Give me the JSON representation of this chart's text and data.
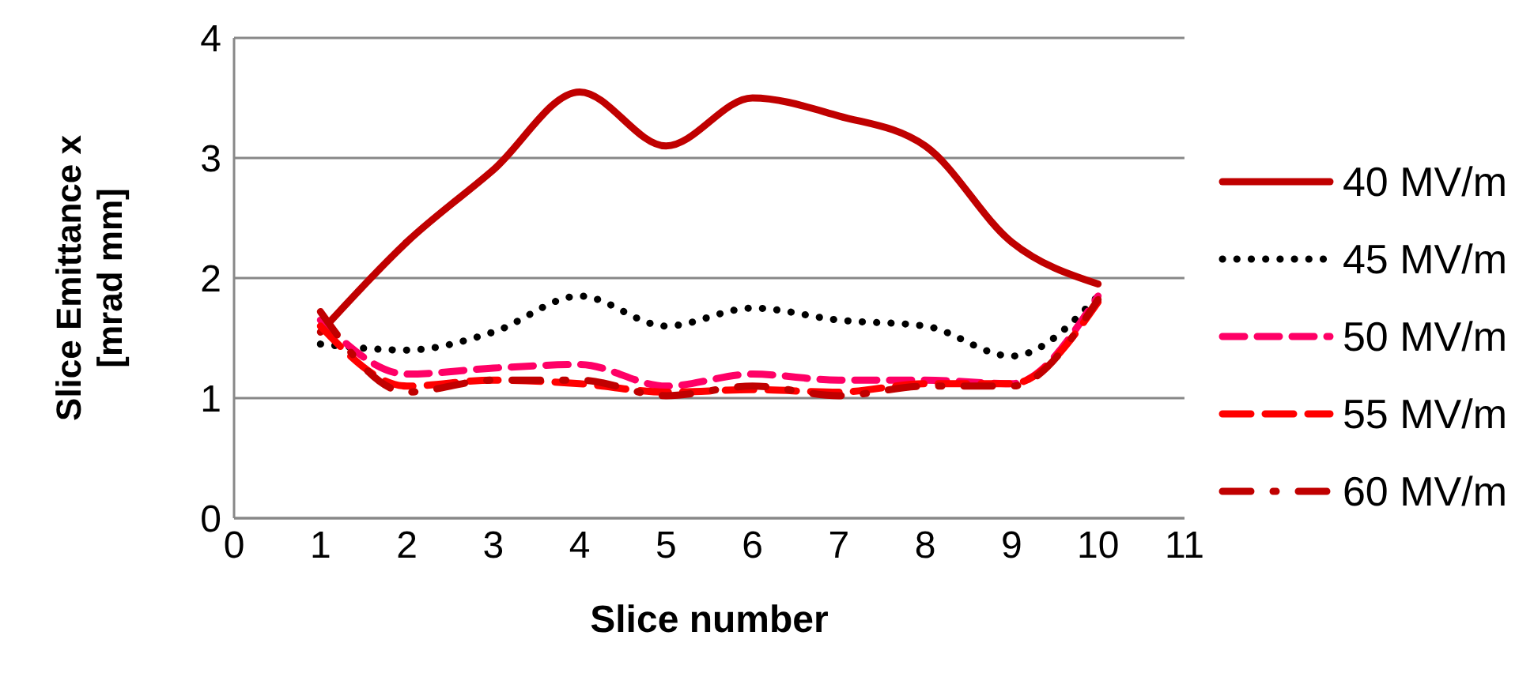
{
  "chart_data": {
    "type": "line",
    "xlabel": "Slice number",
    "ylabel": "Slice Emittance x [mrad mm]",
    "x": [
      1,
      2,
      3,
      4,
      5,
      6,
      7,
      8,
      9,
      10
    ],
    "xlim": [
      0,
      11
    ],
    "xticks": [
      0,
      1,
      2,
      3,
      4,
      5,
      6,
      7,
      8,
      9,
      10,
      11
    ],
    "ylim": [
      0,
      4
    ],
    "yticks": [
      0,
      1,
      2,
      3,
      4
    ],
    "grid": "y",
    "legend": "right",
    "marker": "none",
    "series": [
      {
        "name": "40 MV/m",
        "color": "#c00000",
        "line_style": "solid",
        "values": [
          1.55,
          2.3,
          2.9,
          3.55,
          3.1,
          3.5,
          3.35,
          3.1,
          2.3,
          1.95
        ]
      },
      {
        "name": "45 MV/m",
        "color": "#000000",
        "line_style": "dotted",
        "values": [
          1.45,
          1.4,
          1.55,
          1.85,
          1.6,
          1.75,
          1.65,
          1.6,
          1.35,
          1.85
        ]
      },
      {
        "name": "50 MV/m",
        "color": "#ff0066",
        "line_style": "dashed",
        "values": [
          1.65,
          1.2,
          1.25,
          1.28,
          1.1,
          1.2,
          1.15,
          1.15,
          1.12,
          1.85
        ]
      },
      {
        "name": "55 MV/m",
        "color": "#ff0000",
        "line_style": "dashed",
        "values": [
          1.6,
          1.1,
          1.15,
          1.12,
          1.05,
          1.07,
          1.05,
          1.12,
          1.12,
          1.8
        ]
      },
      {
        "name": "60 MV/m",
        "color": "#c00000",
        "line_style": "dashed",
        "values": [
          1.72,
          1.05,
          1.15,
          1.15,
          1.02,
          1.1,
          1.02,
          1.1,
          1.1,
          1.82
        ]
      }
    ]
  }
}
